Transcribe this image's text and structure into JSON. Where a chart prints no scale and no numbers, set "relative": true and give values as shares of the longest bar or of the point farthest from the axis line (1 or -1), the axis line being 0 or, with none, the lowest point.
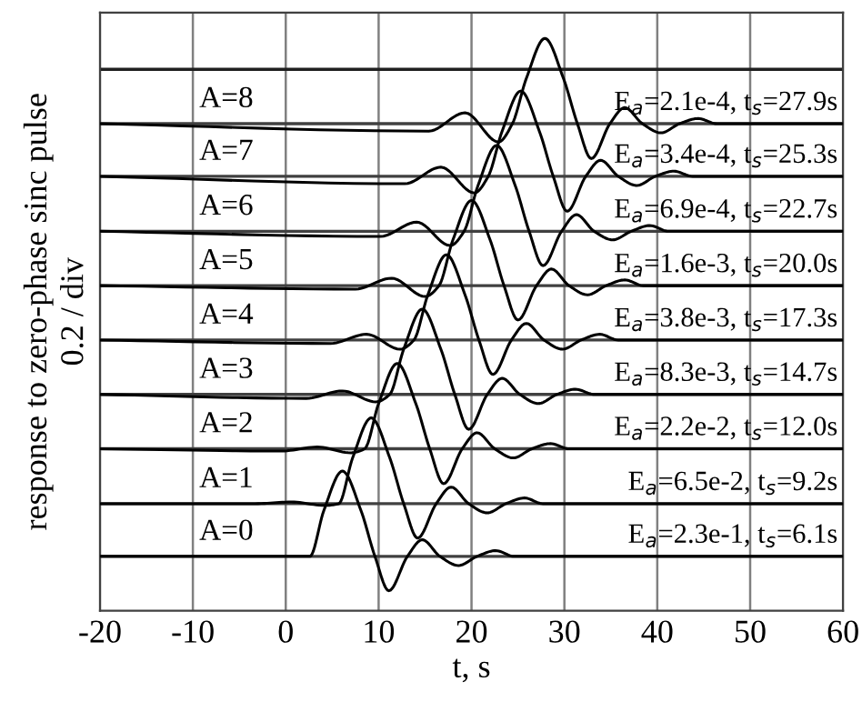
{
  "chart_data": {
    "type": "line",
    "relative": true,
    "xlabel": "t, s",
    "ylabel": "response to zero-phase sinc pulse\n0.2 / div",
    "xlim": [
      -20,
      60
    ],
    "xticks": [
      -20,
      -10,
      0,
      10,
      20,
      30,
      40,
      50,
      60
    ],
    "grid": "x",
    "tick_labels": "x",
    "marker": "none",
    "line_style": "solid",
    "series": [
      {
        "name": "A=0",
        "color": "#000000",
        "x": [
          -20,
          -6.4,
          -2.5,
          1.1,
          2.6,
          4.1,
          6.1,
          8.1,
          9.6,
          11.1,
          13.1,
          14.7,
          16.6,
          18.6,
          20.6,
          22.6,
          24.6,
          60
        ],
        "values": [
          0.095,
          0.095,
          0.095,
          0.095,
          0.095,
          0.175,
          0.244,
          0.175,
          0.095,
          0.035,
          0.095,
          0.124,
          0.095,
          0.079,
          0.095,
          0.105,
          0.095,
          0.095
        ]
      },
      {
        "name": "A=1",
        "color": "#000000",
        "x": [
          -20,
          -3.3,
          0.6,
          4.2,
          5.7,
          7.2,
          9.2,
          11.2,
          12.7,
          14.2,
          16.2,
          17.8,
          19.7,
          21.7,
          23.7,
          25.7,
          27.7,
          60
        ],
        "values": [
          0.187,
          0.187,
          0.19,
          0.184,
          0.187,
          0.267,
          0.337,
          0.267,
          0.187,
          0.127,
          0.187,
          0.216,
          0.187,
          0.171,
          0.187,
          0.197,
          0.187,
          0.187
        ]
      },
      {
        "name": "A=2",
        "color": "#000000",
        "x": [
          -20,
          -0.5,
          3.4,
          7.0,
          8.5,
          10.0,
          12.0,
          14.0,
          15.5,
          17.0,
          19.0,
          20.6,
          22.5,
          24.5,
          26.5,
          28.5,
          30.5,
          60
        ],
        "values": [
          0.283,
          0.279,
          0.286,
          0.276,
          0.283,
          0.362,
          0.432,
          0.362,
          0.283,
          0.222,
          0.283,
          0.311,
          0.283,
          0.267,
          0.283,
          0.292,
          0.283,
          0.283
        ]
      },
      {
        "name": "A=3",
        "color": "#000000",
        "x": [
          -20,
          2.2,
          6.1,
          9.7,
          11.2,
          12.7,
          14.7,
          16.7,
          18.2,
          19.7,
          21.7,
          23.3,
          25.2,
          27.2,
          29.2,
          31.2,
          33.2,
          60
        ],
        "values": [
          0.378,
          0.371,
          0.384,
          0.365,
          0.378,
          0.457,
          0.527,
          0.457,
          0.378,
          0.317,
          0.378,
          0.406,
          0.378,
          0.362,
          0.378,
          0.387,
          0.378,
          0.378
        ]
      },
      {
        "name": "A=4",
        "color": "#000000",
        "x": [
          -20,
          4.8,
          8.7,
          12.3,
          13.8,
          15.3,
          17.3,
          19.3,
          20.8,
          22.3,
          24.3,
          25.9,
          27.8,
          29.8,
          31.8,
          33.8,
          35.8,
          60
        ],
        "values": [
          0.473,
          0.467,
          0.483,
          0.457,
          0.473,
          0.552,
          0.622,
          0.552,
          0.473,
          0.413,
          0.473,
          0.502,
          0.473,
          0.457,
          0.473,
          0.483,
          0.473,
          0.473
        ]
      },
      {
        "name": "A=5",
        "color": "#000000",
        "x": [
          -20,
          7.5,
          11.4,
          15.0,
          16.5,
          18.0,
          20.0,
          22.0,
          23.5,
          25.0,
          27.0,
          28.6,
          30.5,
          32.5,
          34.5,
          36.5,
          38.5,
          60
        ],
        "values": [
          0.568,
          0.562,
          0.581,
          0.549,
          0.568,
          0.648,
          0.717,
          0.648,
          0.568,
          0.508,
          0.568,
          0.597,
          0.568,
          0.552,
          0.568,
          0.578,
          0.568,
          0.568
        ]
      },
      {
        "name": "A=6",
        "color": "#000000",
        "x": [
          -20,
          10.2,
          14.1,
          17.7,
          19.2,
          20.7,
          22.7,
          24.7,
          26.2,
          27.7,
          29.7,
          31.3,
          33.2,
          35.2,
          37.2,
          39.2,
          41.2,
          60
        ],
        "values": [
          0.663,
          0.654,
          0.679,
          0.638,
          0.663,
          0.743,
          0.813,
          0.743,
          0.663,
          0.603,
          0.663,
          0.692,
          0.663,
          0.648,
          0.663,
          0.673,
          0.663,
          0.663
        ]
      },
      {
        "name": "A=7",
        "color": "#000000",
        "x": [
          -20,
          12.8,
          16.7,
          20.3,
          21.8,
          23.3,
          25.3,
          27.3,
          28.8,
          30.3,
          32.3,
          33.9,
          35.8,
          37.8,
          39.8,
          41.8,
          43.8,
          60
        ],
        "values": [
          0.759,
          0.746,
          0.775,
          0.73,
          0.759,
          0.838,
          0.908,
          0.838,
          0.759,
          0.698,
          0.759,
          0.787,
          0.759,
          0.743,
          0.759,
          0.768,
          0.759,
          0.759
        ]
      },
      {
        "name": "A=8",
        "color": "#000000",
        "x": [
          -20,
          15.4,
          19.3,
          22.9,
          24.4,
          25.9,
          27.9,
          29.9,
          31.4,
          32.9,
          34.9,
          36.5,
          38.4,
          40.4,
          42.4,
          44.4,
          46.4,
          60
        ],
        "values": [
          0.851,
          0.838,
          0.87,
          0.819,
          0.851,
          0.93,
          1,
          0.93,
          0.851,
          0.79,
          0.851,
          0.879,
          0.851,
          0.835,
          0.851,
          0.86,
          0.851,
          0.851
        ]
      }
    ],
    "ref_lines": [
      {
        "axis": "y",
        "value": 0.095,
        "color": "#404040"
      },
      {
        "axis": "y",
        "value": 0.187,
        "color": "#404040"
      },
      {
        "axis": "y",
        "value": 0.283,
        "color": "#404040"
      },
      {
        "axis": "y",
        "value": 0.378,
        "color": "#404040"
      },
      {
        "axis": "y",
        "value": 0.473,
        "color": "#404040"
      },
      {
        "axis": "y",
        "value": 0.568,
        "color": "#404040"
      },
      {
        "axis": "y",
        "value": 0.663,
        "color": "#404040"
      },
      {
        "axis": "y",
        "value": 0.759,
        "color": "#404040"
      },
      {
        "axis": "y",
        "value": 0.851,
        "color": "#404040"
      },
      {
        "axis": "y",
        "value": 0.946,
        "color": "#202020"
      }
    ],
    "annotations": [
      "E$_{a}$=2.1e-4, t$_{s}$=27.9s",
      "E$_{a}$=3.4e-4, t$_{s}$=25.3s",
      "E$_{a}$=6.9e-4, t$_{s}$=22.7s",
      "E$_{a}$=1.6e-3, t$_{s}$=20.0s",
      "E$_{a}$=3.8e-3, t$_{s}$=17.3s",
      "E$_{a}$=8.3e-3, t$_{s}$=14.7s",
      "E$_{a}$=2.2e-2, t$_{s}$=12.0s",
      "E$_{a}$=6.5e-2, t$_{s}$=9.2s",
      "E$_{a}$=2.3e-1, t$_{s}$=6.1s"
    ]
  }
}
